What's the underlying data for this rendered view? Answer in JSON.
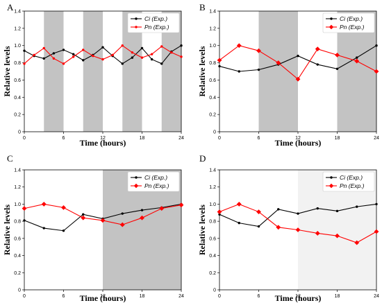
{
  "colors": {
    "shade_dark": "#c3c3c3",
    "shade_light": "#f2f2f2",
    "ci": "#000000",
    "pn": "#ff0000"
  },
  "chart_data": [
    {
      "panel": "A",
      "type": "line",
      "xlabel": "Time (hours)",
      "ylabel": "Relative levels",
      "xlim": [
        0,
        24
      ],
      "ylim": [
        0,
        1.4
      ],
      "xticks": [
        "0",
        "6",
        "12",
        "18",
        "24"
      ],
      "yticks": [
        "0",
        "0.2",
        "0.4",
        "0.6",
        "0.8",
        "1.0",
        "1.2",
        "1.4"
      ],
      "shaded_regions": [
        {
          "from": 3,
          "to": 6,
          "shade": "dark"
        },
        {
          "from": 9,
          "to": 12,
          "shade": "dark"
        },
        {
          "from": 15,
          "to": 18,
          "shade": "dark"
        },
        {
          "from": 21,
          "to": 24,
          "shade": "dark"
        }
      ],
      "legend_position": "top-right",
      "series": [
        {
          "name_italic": "Ci",
          "name_suffix": " (Exp.)",
          "color": "ci",
          "marker": "dot",
          "x": [
            0,
            1.5,
            3,
            4.5,
            6,
            7.5,
            9,
            10.5,
            12,
            13.5,
            15,
            16.5,
            18,
            19.5,
            21,
            22.5,
            24
          ],
          "y": [
            0.94,
            0.88,
            0.85,
            0.91,
            0.95,
            0.9,
            0.83,
            0.89,
            0.98,
            0.88,
            0.79,
            0.86,
            0.97,
            0.84,
            0.79,
            0.93,
            1.0
          ]
        },
        {
          "name_italic": "Pn",
          "name_suffix": " (Exp.)",
          "color": "pn",
          "marker": "dot",
          "x": [
            0,
            1.5,
            3,
            4.5,
            6,
            7.5,
            9,
            10.5,
            12,
            13.5,
            15,
            16.5,
            18,
            19.5,
            21,
            22.5,
            24
          ],
          "y": [
            0.79,
            0.89,
            0.97,
            0.85,
            0.79,
            0.87,
            0.95,
            0.88,
            0.84,
            0.89,
            1.0,
            0.92,
            0.86,
            0.9,
            0.99,
            0.92,
            0.87
          ]
        }
      ]
    },
    {
      "panel": "B",
      "type": "line",
      "xlabel": "Time (hours)",
      "ylabel": "Relative levels",
      "xlim": [
        0,
        24
      ],
      "ylim": [
        0,
        1.4
      ],
      "xticks": [
        "0",
        "6",
        "12",
        "18",
        "24"
      ],
      "yticks": [
        "0",
        "0.2",
        "0.4",
        "0.6",
        "0.8",
        "1.0",
        "1.2",
        "1.4"
      ],
      "shaded_regions": [
        {
          "from": 6,
          "to": 12,
          "shade": "dark"
        },
        {
          "from": 18,
          "to": 24,
          "shade": "dark"
        }
      ],
      "legend_position": "top-right",
      "series": [
        {
          "name_italic": "Ci",
          "name_suffix": " (Exp.)",
          "color": "ci",
          "marker": "dot",
          "x": [
            0,
            3,
            6,
            9,
            12,
            15,
            18,
            21,
            24
          ],
          "y": [
            0.76,
            0.7,
            0.72,
            0.78,
            0.88,
            0.78,
            0.73,
            0.86,
            1.0
          ]
        },
        {
          "name_italic": "Pn",
          "name_suffix": " (Exp.)",
          "color": "pn",
          "marker": "diamond",
          "x": [
            0,
            3,
            6,
            9,
            12,
            15,
            18,
            21,
            24
          ],
          "y": [
            0.83,
            1.0,
            0.94,
            0.8,
            0.61,
            0.96,
            0.89,
            0.82,
            0.7
          ]
        }
      ]
    },
    {
      "panel": "C",
      "type": "line",
      "xlabel": "Time (hours)",
      "ylabel": "Relative levels",
      "xlim": [
        0,
        24
      ],
      "ylim": [
        0,
        1.4
      ],
      "xticks": [
        "0",
        "6",
        "12",
        "18",
        "24"
      ],
      "yticks": [
        "0",
        "0.2",
        "0.4",
        "0.6",
        "0.8",
        "1.0",
        "1.2",
        "1.4"
      ],
      "shaded_regions": [
        {
          "from": 12,
          "to": 24,
          "shade": "dark"
        }
      ],
      "legend_position": "top-right",
      "series": [
        {
          "name_italic": "Ci",
          "name_suffix": " (Exp.)",
          "color": "ci",
          "marker": "dot",
          "x": [
            0,
            3,
            6,
            9,
            12,
            15,
            18,
            21,
            24
          ],
          "y": [
            0.81,
            0.72,
            0.69,
            0.88,
            0.83,
            0.89,
            0.93,
            0.96,
            1.0
          ]
        },
        {
          "name_italic": "Pn",
          "name_suffix": " (Exp.)",
          "color": "pn",
          "marker": "diamond",
          "x": [
            0,
            3,
            6,
            9,
            12,
            15,
            18,
            21,
            24
          ],
          "y": [
            0.95,
            1.0,
            0.96,
            0.84,
            0.81,
            0.76,
            0.84,
            0.95,
            0.99
          ]
        }
      ]
    },
    {
      "panel": "D",
      "type": "line",
      "xlabel": "Time (hours)",
      "ylabel": "Relative levels",
      "xlim": [
        0,
        24
      ],
      "ylim": [
        0,
        1.4
      ],
      "xticks": [
        "0",
        "6",
        "12",
        "18",
        "24"
      ],
      "yticks": [
        "0",
        "0.2",
        "0.4",
        "0.6",
        "0.8",
        "1.0",
        "1.2",
        "1.4"
      ],
      "shaded_regions": [
        {
          "from": 12,
          "to": 24,
          "shade": "light"
        }
      ],
      "legend_position": "top-right",
      "series": [
        {
          "name_italic": "Ci",
          "name_suffix": " (Exp.)",
          "color": "ci",
          "marker": "dot",
          "x": [
            0,
            3,
            6,
            9,
            12,
            15,
            18,
            21,
            24
          ],
          "y": [
            0.88,
            0.78,
            0.74,
            0.94,
            0.89,
            0.95,
            0.92,
            0.97,
            1.0
          ]
        },
        {
          "name_italic": "Pn",
          "name_suffix": " (Exp.)",
          "color": "pn",
          "marker": "diamond",
          "x": [
            0,
            3,
            6,
            9,
            12,
            15,
            18,
            21,
            24
          ],
          "y": [
            0.91,
            1.0,
            0.91,
            0.73,
            0.7,
            0.66,
            0.63,
            0.55,
            0.68
          ]
        }
      ]
    }
  ]
}
